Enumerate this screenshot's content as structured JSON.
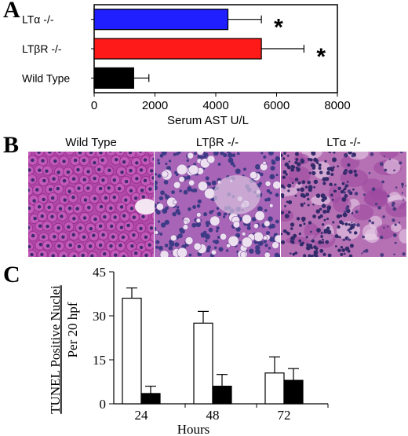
{
  "panels": {
    "a": {
      "letter": "A",
      "chart_data": {
        "type": "bar",
        "orientation": "horizontal",
        "categories": [
          "LTα -/-",
          "LTβR -/-",
          "Wild Type"
        ],
        "values": [
          4400,
          5500,
          1300
        ],
        "errors": [
          1100,
          1400,
          500
        ],
        "significance": [
          "*",
          "*",
          ""
        ],
        "bar_colors": [
          "#1f1fff",
          "#ff1a1a",
          "#000000"
        ],
        "xlim": [
          0,
          8000
        ],
        "xticks": [
          0,
          2000,
          4000,
          6000,
          8000
        ],
        "xlabel": "Serum AST  U/L",
        "ylabel": ""
      }
    },
    "b": {
      "letter": "B",
      "images": [
        {
          "title": "Wild Type",
          "tissue": "normal"
        },
        {
          "title": "LTβR -/-",
          "tissue": "vacuolated"
        },
        {
          "title": "LTα -/-",
          "tissue": "necrotic"
        }
      ]
    },
    "c": {
      "letter": "C",
      "chart_data": {
        "type": "bar",
        "categories": [
          "24",
          "48",
          "72"
        ],
        "series": [
          {
            "fill": "#ffffff",
            "values": [
              36,
              27.5,
              10.5
            ],
            "errors": [
              3.5,
              4,
              5.5
            ]
          },
          {
            "fill": "#000000",
            "values": [
              3.5,
              6,
              8
            ],
            "errors": [
              2.5,
              4,
              4
            ]
          }
        ],
        "ylim": [
          0,
          45
        ],
        "yticks": [
          0,
          15,
          30,
          45
        ],
        "ylabel_main": "TUNEL Positive Nuclei",
        "ylabel_sub": "Per 20 hpf",
        "xlabel": "Hours"
      }
    }
  }
}
